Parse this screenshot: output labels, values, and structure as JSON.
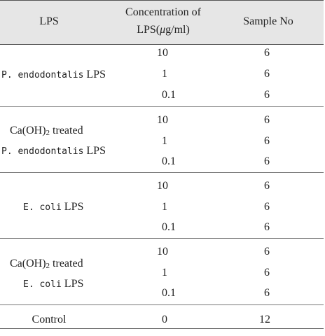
{
  "headers": {
    "lps": "LPS",
    "concentration_line1": "Concentration of",
    "concentration_line2_pre": "LPS(",
    "concentration_mu": "μ",
    "concentration_line2_post": "g/ml)",
    "sample_no": "Sample No"
  },
  "groups": [
    {
      "label_lines": [
        {
          "mono": "P. endodontalis",
          "serif": " LPS"
        }
      ],
      "rows": [
        {
          "concentration": "10",
          "sample_no": "6"
        },
        {
          "concentration": "1",
          "sample_no": "6"
        },
        {
          "concentration": "0.1",
          "sample_no": "6"
        }
      ]
    },
    {
      "label_lines": [
        {
          "serif_pre": "Ca(OH)",
          "sub": "2",
          "serif_post": " treated"
        },
        {
          "mono": "P. endodontalis",
          "serif": " LPS"
        }
      ],
      "rows": [
        {
          "concentration": "10",
          "sample_no": "6"
        },
        {
          "concentration": "1",
          "sample_no": "6"
        },
        {
          "concentration": "0.1",
          "sample_no": "6"
        }
      ]
    },
    {
      "label_lines": [
        {
          "mono": "E. coli",
          "serif": " LPS"
        }
      ],
      "rows": [
        {
          "concentration": "10",
          "sample_no": "6"
        },
        {
          "concentration": "1",
          "sample_no": "6"
        },
        {
          "concentration": "0.1",
          "sample_no": "6"
        }
      ]
    },
    {
      "label_lines": [
        {
          "serif_pre": "Ca(OH)",
          "sub": "2",
          "serif_post": " treated"
        },
        {
          "mono": "E. coli",
          "serif": " LPS"
        }
      ],
      "rows": [
        {
          "concentration": "10",
          "sample_no": "6"
        },
        {
          "concentration": "1",
          "sample_no": "6"
        },
        {
          "concentration": "0.1",
          "sample_no": "6"
        }
      ]
    }
  ],
  "control": {
    "label": "Control",
    "concentration": "0",
    "sample_no": "12"
  }
}
